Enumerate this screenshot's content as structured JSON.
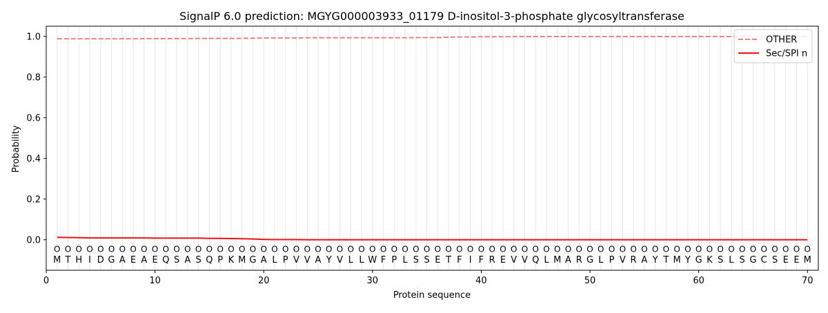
{
  "chart_data": {
    "type": "line",
    "title": "SignalP 6.0 prediction: MGYG000003933_01179 D-inositol-3-phosphate glycosyltransferase",
    "xlabel": "Protein sequence",
    "ylabel": "Probability",
    "xlim": [
      0,
      71
    ],
    "ylim": [
      -0.15,
      1.05
    ],
    "x_ticks": [
      0,
      10,
      20,
      30,
      40,
      50,
      60,
      70
    ],
    "y_ticks": [
      0.0,
      0.2,
      0.4,
      0.6,
      0.8,
      1.0
    ],
    "x_tick_labels": [
      "0",
      "10",
      "20",
      "30",
      "40",
      "50",
      "60",
      "70"
    ],
    "y_tick_labels": [
      "0.0",
      "0.2",
      "0.4",
      "0.6",
      "0.8",
      "1.0"
    ],
    "grid": "vertical lines at each residue",
    "legend_position": "top-right",
    "sequence": [
      "M",
      "T",
      "H",
      "I",
      "D",
      "G",
      "A",
      "E",
      "A",
      "E",
      "Q",
      "S",
      "A",
      "S",
      "Q",
      "P",
      "K",
      "M",
      "G",
      "A",
      "L",
      "P",
      "V",
      "V",
      "A",
      "Y",
      "V",
      "L",
      "L",
      "W",
      "F",
      "P",
      "L",
      "S",
      "S",
      "E",
      "T",
      "F",
      "I",
      "F",
      "R",
      "E",
      "V",
      "V",
      "Q",
      "L",
      "M",
      "A",
      "R",
      "G",
      "L",
      "P",
      "V",
      "R",
      "A",
      "Y",
      "T",
      "M",
      "Y",
      "G",
      "K",
      "S",
      "L",
      "S",
      "G",
      "C",
      "S",
      "E",
      "E",
      "M"
    ],
    "marker_label": "O",
    "series": [
      {
        "name": "OTHER",
        "color": "#f08080",
        "dash": "dashed",
        "values": [
          0.988,
          0.988,
          0.988,
          0.988,
          0.988,
          0.988,
          0.988,
          0.988,
          0.989,
          0.989,
          0.989,
          0.989,
          0.989,
          0.99,
          0.99,
          0.99,
          0.99,
          0.99,
          0.991,
          0.992,
          0.992,
          0.992,
          0.992,
          0.993,
          0.993,
          0.993,
          0.993,
          0.993,
          0.993,
          0.993,
          0.993,
          0.993,
          0.993,
          0.994,
          0.994,
          0.994,
          0.996,
          0.997,
          0.997,
          0.998,
          0.998,
          0.998,
          0.999,
          0.999,
          0.999,
          0.999,
          0.999,
          0.999,
          0.999,
          0.999,
          0.999,
          0.999,
          0.999,
          0.999,
          0.999,
          0.999,
          0.999,
          0.999,
          0.999,
          0.999,
          0.999,
          0.999,
          0.999,
          0.999,
          0.999,
          0.999,
          0.999,
          0.999,
          0.999,
          0.999
        ]
      },
      {
        "name": "Sec/SPI n",
        "color": "#ee1111",
        "dash": "solid",
        "values": [
          0.012,
          0.011,
          0.01,
          0.009,
          0.009,
          0.009,
          0.009,
          0.009,
          0.009,
          0.008,
          0.008,
          0.008,
          0.008,
          0.008,
          0.007,
          0.007,
          0.006,
          0.005,
          0.004,
          0.002,
          0.001,
          0.001,
          0.001,
          0.0,
          0.0,
          0.0,
          0.0,
          0.0,
          0.0,
          0.0,
          0.0,
          0.0,
          0.0,
          0.0,
          0.0,
          0.0,
          0.0,
          0.0,
          0.0,
          0.0,
          0.0,
          0.0,
          0.0,
          0.0,
          0.0,
          0.0,
          0.0,
          0.0,
          0.0,
          0.0,
          0.0,
          0.0,
          0.0,
          0.0,
          0.0,
          0.0,
          0.0,
          0.0,
          0.0,
          0.0,
          0.0,
          0.0,
          0.0,
          0.0,
          0.0,
          0.0,
          0.0,
          0.0,
          0.0,
          0.0
        ]
      }
    ]
  }
}
